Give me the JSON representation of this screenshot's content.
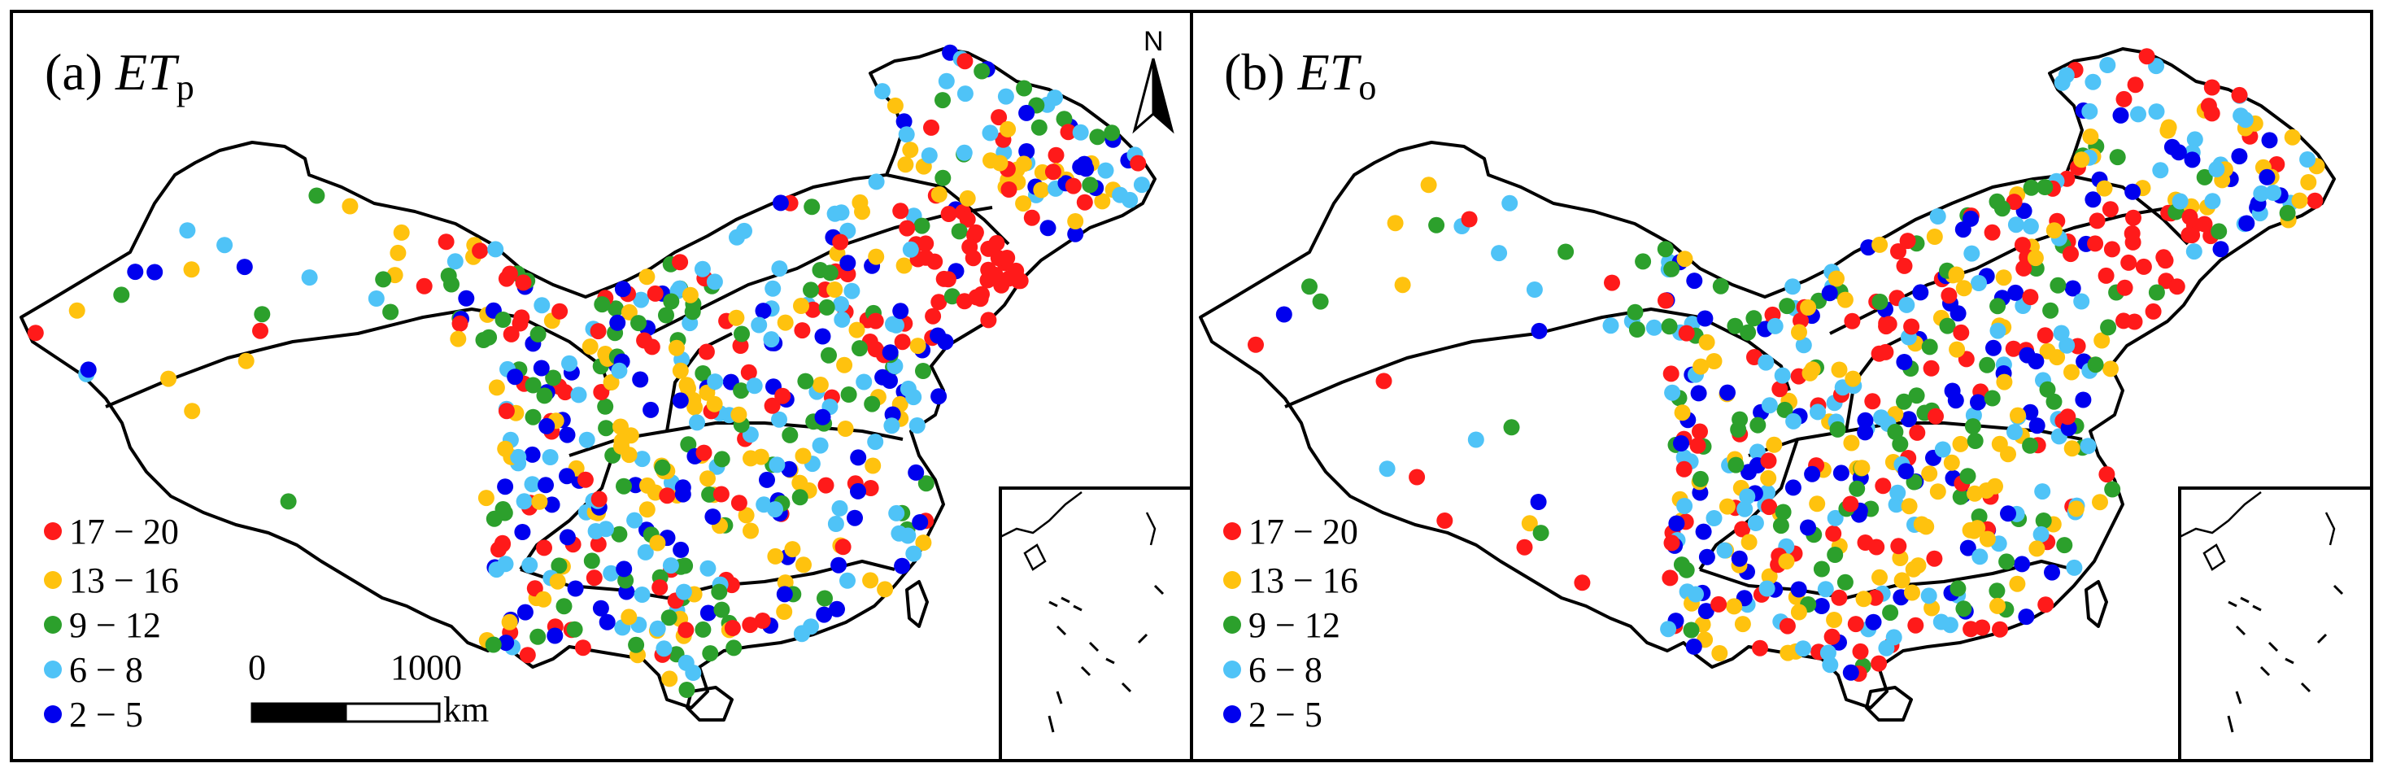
{
  "panels": [
    {
      "id": "etp",
      "prefix": "(a) ",
      "italic": "ET",
      "sub": "p",
      "legend": [
        {
          "label": "17 − 20",
          "color": "#ff1a1a"
        },
        {
          "label": "13 − 16",
          "color": "#ffc20e"
        },
        {
          "label": "9 − 12",
          "color": "#2ca02c"
        },
        {
          "label": "6 − 8",
          "color": "#4fc3f7"
        },
        {
          "label": "2 − 5",
          "color": "#0000ee"
        }
      ],
      "scale_bar": {
        "zero": "0",
        "max": "1000",
        "unit": "km"
      },
      "north": "N"
    },
    {
      "id": "eto",
      "prefix": "(b) ",
      "italic": "ET",
      "sub": "o",
      "legend": [
        {
          "label": "17 − 20",
          "color": "#ff1a1a"
        },
        {
          "label": "13 − 16",
          "color": "#ffc20e"
        },
        {
          "label": "9 − 12",
          "color": "#2ca02c"
        },
        {
          "label": "6 − 8",
          "color": "#4fc3f7"
        },
        {
          "label": "2 − 5",
          "color": "#0000ee"
        }
      ]
    }
  ],
  "class_colors": [
    "#ff1a1a",
    "#ffc20e",
    "#2ca02c",
    "#4fc3f7",
    "#0000ee"
  ]
}
